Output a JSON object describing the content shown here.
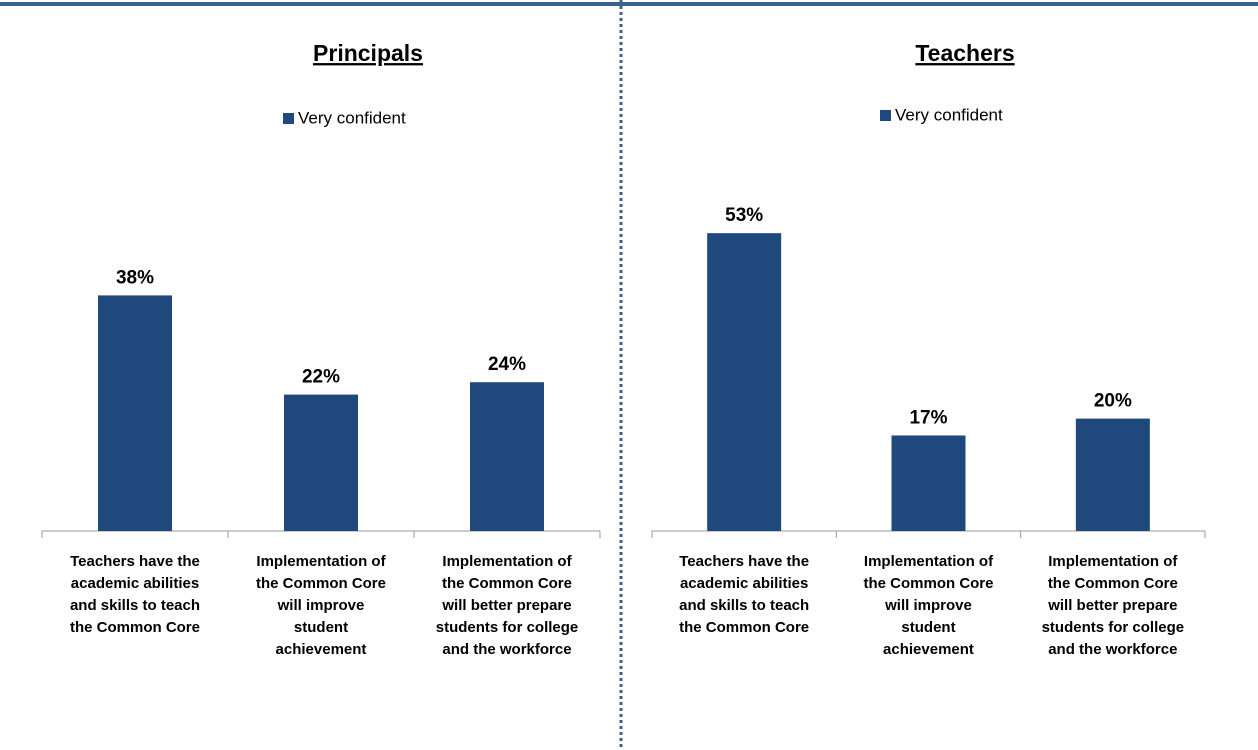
{
  "chart_data": [
    {
      "type": "bar",
      "title": "Principals",
      "legend": "Very confident",
      "color": "#1f497d",
      "categories": [
        "Teachers have the\nacademic abilities\nand skills to teach\nthe Common Core",
        "Implementation of\nthe Common Core\nwill improve\nstudent\nachievement",
        "Implementation of\nthe Common Core\nwill better prepare\nstudents for college\nand the workforce"
      ],
      "values": [
        38,
        22,
        24
      ],
      "value_labels": [
        "38%",
        "22%",
        "24%"
      ]
    },
    {
      "type": "bar",
      "title": "Teachers",
      "legend": "Very confident",
      "color": "#1f497d",
      "categories": [
        "Teachers have the\nacademic abilities\nand skills to teach\nthe Common Core",
        "Implementation of\nthe Common Core\nwill improve\nstudent\nachievement",
        "Implementation of\nthe Common Core\nwill better prepare\nstudents for college\nand the workforce"
      ],
      "values": [
        53,
        17,
        20
      ],
      "value_labels": [
        "53%",
        "17%",
        "20%"
      ]
    }
  ]
}
